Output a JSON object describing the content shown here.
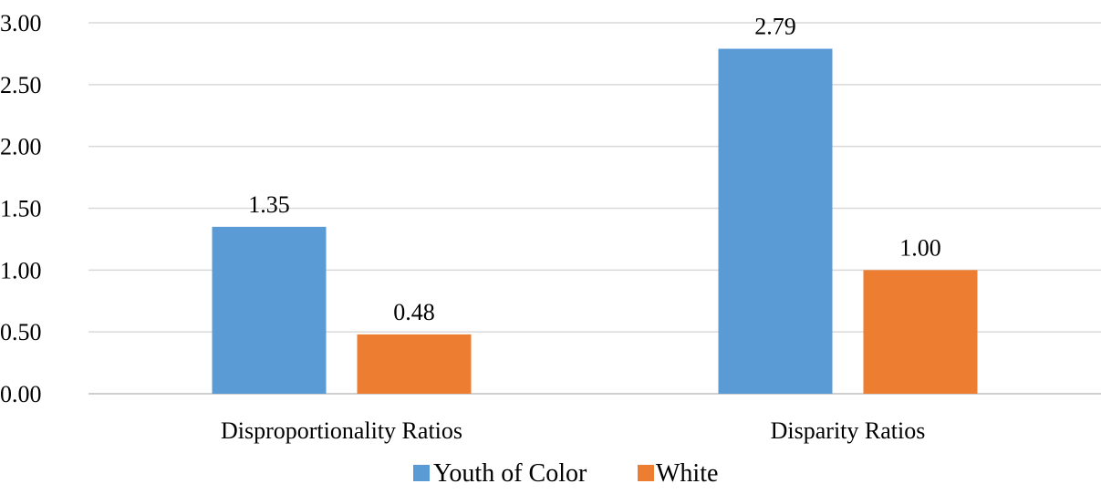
{
  "chart_data": {
    "type": "bar",
    "title": "",
    "xlabel": "",
    "ylabel": "",
    "categories": [
      "Disproportionality Ratios",
      "Disparity Ratios"
    ],
    "series": [
      {
        "name": "Youth of Color",
        "values": [
          1.35,
          2.79
        ],
        "color": "#5b9bd5"
      },
      {
        "name": "White",
        "values": [
          0.48,
          1.0
        ],
        "color": "#ed7d31"
      }
    ],
    "ylim": [
      0,
      3
    ],
    "yticks": [
      "0.00",
      "0.50",
      "1.00",
      "1.50",
      "2.00",
      "2.50",
      "3.00"
    ],
    "data_labels": [
      [
        "1.35",
        "2.79"
      ],
      [
        "0.48",
        "1.00"
      ]
    ],
    "grid": true,
    "legend_position": "bottom"
  }
}
